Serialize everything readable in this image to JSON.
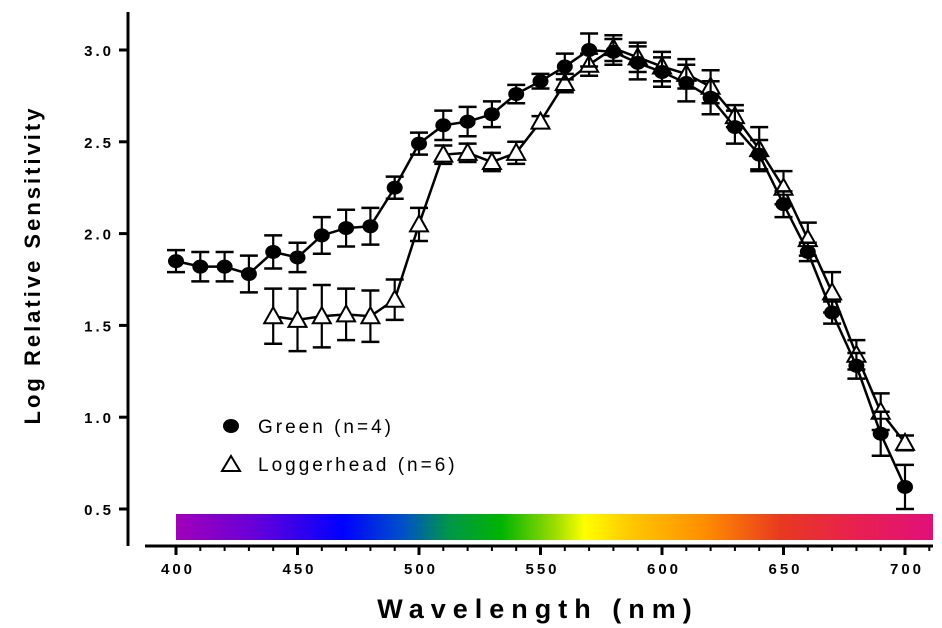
{
  "chart_data": {
    "type": "line",
    "xlabel": "Wavelength (nm)",
    "ylabel": "Log Relative Sensitivity",
    "xlim": [
      395,
      712
    ],
    "ylim": [
      0.4,
      3.2
    ],
    "xticks": [
      400,
      450,
      500,
      550,
      600,
      650,
      700
    ],
    "xtick_labels": [
      "400",
      "450",
      "500",
      "550",
      "600",
      "650",
      "700"
    ],
    "yticks": [
      0.5,
      1.0,
      1.5,
      2.0,
      2.5,
      3.0
    ],
    "ytick_labels": [
      "0.5",
      "1.0",
      "1.5",
      "2.0",
      "2.5",
      "3.0"
    ],
    "grid": false,
    "legend_position": "lower-left",
    "spectrum_bar": true,
    "series": [
      {
        "name": "Green (n=4)",
        "marker": "filled-circle",
        "color": "#000000",
        "x": [
          400,
          410,
          420,
          430,
          440,
          450,
          460,
          470,
          480,
          490,
          500,
          510,
          520,
          530,
          540,
          550,
          560,
          570,
          580,
          590,
          600,
          610,
          620,
          630,
          640,
          650,
          660,
          670,
          680,
          690,
          700
        ],
        "y": [
          1.85,
          1.82,
          1.82,
          1.78,
          1.9,
          1.87,
          1.99,
          2.03,
          2.04,
          2.25,
          2.49,
          2.59,
          2.61,
          2.65,
          2.76,
          2.83,
          2.91,
          3.0,
          2.99,
          2.93,
          2.88,
          2.82,
          2.74,
          2.58,
          2.43,
          2.16,
          1.9,
          1.57,
          1.28,
          0.91,
          0.62
        ],
        "err": [
          0.06,
          0.08,
          0.08,
          0.1,
          0.09,
          0.08,
          0.1,
          0.1,
          0.1,
          0.06,
          0.06,
          0.08,
          0.08,
          0.07,
          0.05,
          0.04,
          0.07,
          0.09,
          0.07,
          0.09,
          0.08,
          0.1,
          0.09,
          0.09,
          0.08,
          0.07,
          0.05,
          0.06,
          0.07,
          0.12,
          0.12
        ]
      },
      {
        "name": "Loggerhead (n=6)",
        "marker": "open-triangle",
        "color": "#000000",
        "x": [
          440,
          450,
          460,
          470,
          480,
          490,
          500,
          510,
          520,
          530,
          540,
          550,
          560,
          570,
          580,
          590,
          600,
          610,
          620,
          630,
          640,
          650,
          660,
          670,
          680,
          690,
          700
        ],
        "y": [
          1.55,
          1.53,
          1.55,
          1.56,
          1.55,
          1.64,
          2.05,
          2.43,
          2.44,
          2.39,
          2.44,
          2.61,
          2.82,
          2.92,
          3.01,
          2.96,
          2.91,
          2.87,
          2.8,
          2.64,
          2.46,
          2.25,
          1.97,
          1.68,
          1.34,
          1.03,
          0.86
        ]
      }
    ]
  }
}
